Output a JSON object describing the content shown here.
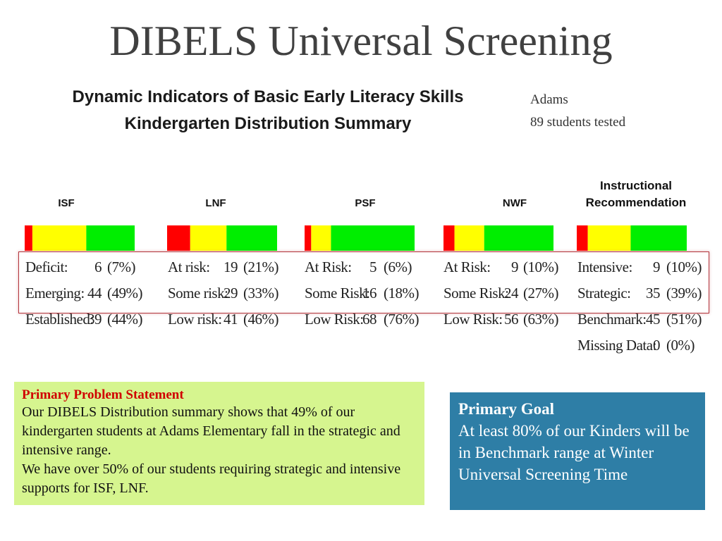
{
  "slide": {
    "title": "DIBELS Universal Screening"
  },
  "report": {
    "title_line1": "Dynamic Indicators of Basic Early Literacy Skills",
    "title_line2": "Kindergarten Distribution Summary",
    "school": "Adams",
    "tested": "89 students tested"
  },
  "colors": {
    "red": "#ff0000",
    "yellow": "#ffff00",
    "green": "#00ee00",
    "frame": "#b3343c"
  },
  "chart_data": {
    "type": "table",
    "measures": [
      {
        "key": "isf",
        "header": "ISF",
        "rows": [
          {
            "label": "Deficit:",
            "count": "6",
            "pct": "(7%)"
          },
          {
            "label": "Emerging:",
            "count": "44",
            "pct": "(49%)"
          },
          {
            "label": "Established:",
            "count": "39",
            "pct": "(44%)"
          }
        ],
        "bar_fractions": [
          0.07,
          0.49,
          0.44
        ]
      },
      {
        "key": "lnf",
        "header": "LNF",
        "rows": [
          {
            "label": "At risk:",
            "count": "19",
            "pct": "(21%)"
          },
          {
            "label": "Some risk:",
            "count": "29",
            "pct": "(33%)"
          },
          {
            "label": "Low risk:",
            "count": "41",
            "pct": "(46%)"
          }
        ],
        "bar_fractions": [
          0.21,
          0.33,
          0.46
        ]
      },
      {
        "key": "psf",
        "header": "PSF",
        "rows": [
          {
            "label": "At Risk:",
            "count": "5",
            "pct": "(6%)"
          },
          {
            "label": "Some Risk:",
            "count": "16",
            "pct": "(18%)"
          },
          {
            "label": "Low Risk:",
            "count": "68",
            "pct": "(76%)"
          }
        ],
        "bar_fractions": [
          0.06,
          0.18,
          0.76
        ]
      },
      {
        "key": "nwf",
        "header": "NWF",
        "rows": [
          {
            "label": "At Risk:",
            "count": "9",
            "pct": "(10%)"
          },
          {
            "label": "Some Risk:",
            "count": "24",
            "pct": "(27%)"
          },
          {
            "label": "Low Risk:",
            "count": "56",
            "pct": "(63%)"
          }
        ],
        "bar_fractions": [
          0.1,
          0.27,
          0.63
        ]
      },
      {
        "key": "instructional",
        "header_line1": "Instructional",
        "header_line2": "Recommendation",
        "rows": [
          {
            "label": "Intensive:",
            "count": "9",
            "pct": "(10%)"
          },
          {
            "label": "Strategic:",
            "count": "35",
            "pct": "(39%)"
          },
          {
            "label": "Benchmark:",
            "count": "45",
            "pct": "(51%)"
          },
          {
            "label": "Missing Data:",
            "count": "0",
            "pct": "(0%)"
          }
        ],
        "bar_fractions": [
          0.1,
          0.39,
          0.51
        ]
      }
    ]
  },
  "problem": {
    "heading": "Primary Problem Statement",
    "line1": "Our DIBELS Distribution summary shows that 49% of our kindergarten students at  Adams Elementary fall in the strategic and intensive range.",
    "line2": "We have over 50% of our students requiring strategic and intensive supports for ISF, LNF."
  },
  "goal": {
    "heading": "Primary Goal",
    "body": "At least 80% of our Kinders will be in Benchmark range at Winter Universal Screening Time"
  }
}
